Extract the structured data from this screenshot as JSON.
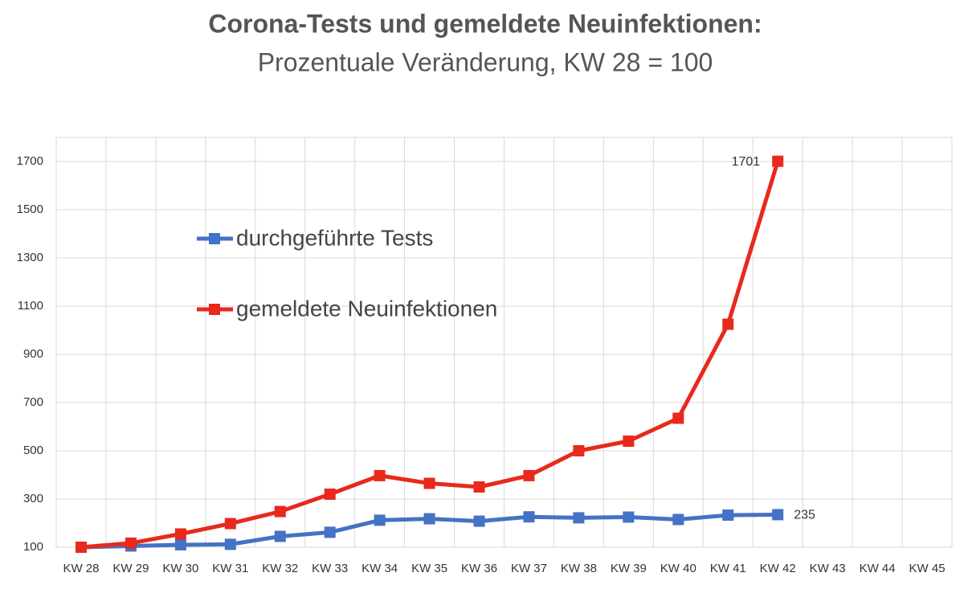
{
  "chart_data": {
    "type": "line",
    "title": "Corona-Tests und gemeldete Neuinfektionen:",
    "subtitle": "Prozentuale Veränderung, KW 28 = 100",
    "categories": [
      "KW 28",
      "KW 29",
      "KW 30",
      "KW 31",
      "KW 32",
      "KW 33",
      "KW 34",
      "KW 35",
      "KW 36",
      "KW 37",
      "KW 38",
      "KW 39",
      "KW 40",
      "KW 41",
      "KW 42",
      "KW 43",
      "KW 44",
      "KW 45"
    ],
    "series": [
      {
        "name": "durchgeführte Tests",
        "color": "#4472c4",
        "values": [
          100,
          105,
          110,
          112,
          145,
          162,
          212,
          218,
          208,
          226,
          222,
          225,
          215,
          233,
          235,
          null,
          null,
          null
        ],
        "value_labels": [
          null,
          null,
          null,
          null,
          null,
          null,
          null,
          null,
          null,
          null,
          null,
          null,
          null,
          null,
          "235",
          null,
          null,
          null
        ]
      },
      {
        "name": "gemeldete Neuinfektionen",
        "color": "#e8291c",
        "values": [
          100,
          117,
          155,
          198,
          248,
          320,
          397,
          365,
          350,
          397,
          500,
          540,
          635,
          1025,
          1701,
          null,
          null,
          null
        ],
        "value_labels": [
          null,
          null,
          null,
          null,
          null,
          null,
          null,
          null,
          null,
          null,
          null,
          null,
          null,
          null,
          "1701",
          null,
          null,
          null
        ]
      }
    ],
    "ylim": [
      100,
      1800
    ],
    "yticks": [
      100,
      300,
      500,
      700,
      900,
      1100,
      1300,
      1500,
      1700
    ],
    "grid": true
  }
}
